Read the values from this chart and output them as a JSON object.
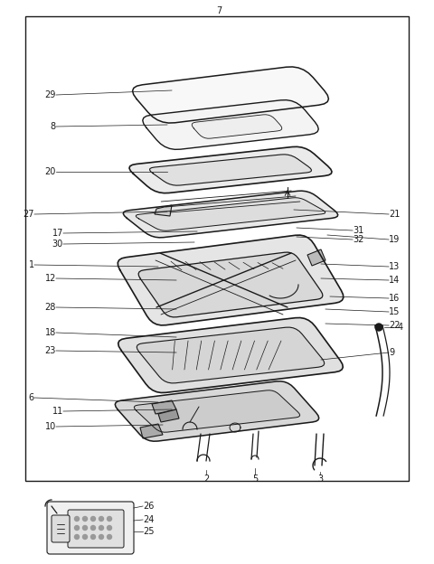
{
  "bg_color": "#ffffff",
  "line_color": "#1a1a1a",
  "fig_width": 4.8,
  "fig_height": 6.24,
  "dpi": 100,
  "font_size": 7.0
}
